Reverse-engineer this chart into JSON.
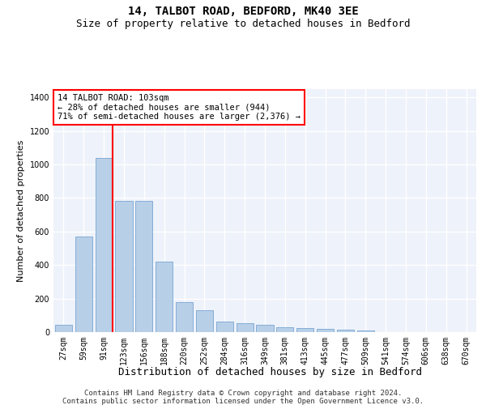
{
  "title1": "14, TALBOT ROAD, BEDFORD, MK40 3EE",
  "title2": "Size of property relative to detached houses in Bedford",
  "xlabel": "Distribution of detached houses by size in Bedford",
  "ylabel": "Number of detached properties",
  "categories": [
    "27sqm",
    "59sqm",
    "91sqm",
    "123sqm",
    "156sqm",
    "188sqm",
    "220sqm",
    "252sqm",
    "284sqm",
    "316sqm",
    "349sqm",
    "381sqm",
    "413sqm",
    "445sqm",
    "477sqm",
    "509sqm",
    "541sqm",
    "574sqm",
    "606sqm",
    "638sqm",
    "670sqm"
  ],
  "values": [
    45,
    570,
    1040,
    785,
    785,
    420,
    180,
    130,
    65,
    55,
    45,
    30,
    25,
    20,
    15,
    10,
    0,
    0,
    0,
    0,
    0
  ],
  "bar_color": "#b8cfe8",
  "bar_edge_color": "#6699cc",
  "vline_color": "red",
  "vline_x_idx": 2,
  "annotation_text": "14 TALBOT ROAD: 103sqm\n← 28% of detached houses are smaller (944)\n71% of semi-detached houses are larger (2,376) →",
  "annotation_box_color": "white",
  "annotation_box_edge_color": "red",
  "ylim": [
    0,
    1450
  ],
  "yticks": [
    0,
    200,
    400,
    600,
    800,
    1000,
    1200,
    1400
  ],
  "footer1": "Contains HM Land Registry data © Crown copyright and database right 2024.",
  "footer2": "Contains public sector information licensed under the Open Government Licence v3.0.",
  "bg_color": "#eef2fa",
  "grid_color": "#ffffff",
  "title1_fontsize": 10,
  "title2_fontsize": 9,
  "xlabel_fontsize": 9,
  "ylabel_fontsize": 8,
  "tick_fontsize": 7,
  "annot_fontsize": 7.5,
  "footer_fontsize": 6.5
}
